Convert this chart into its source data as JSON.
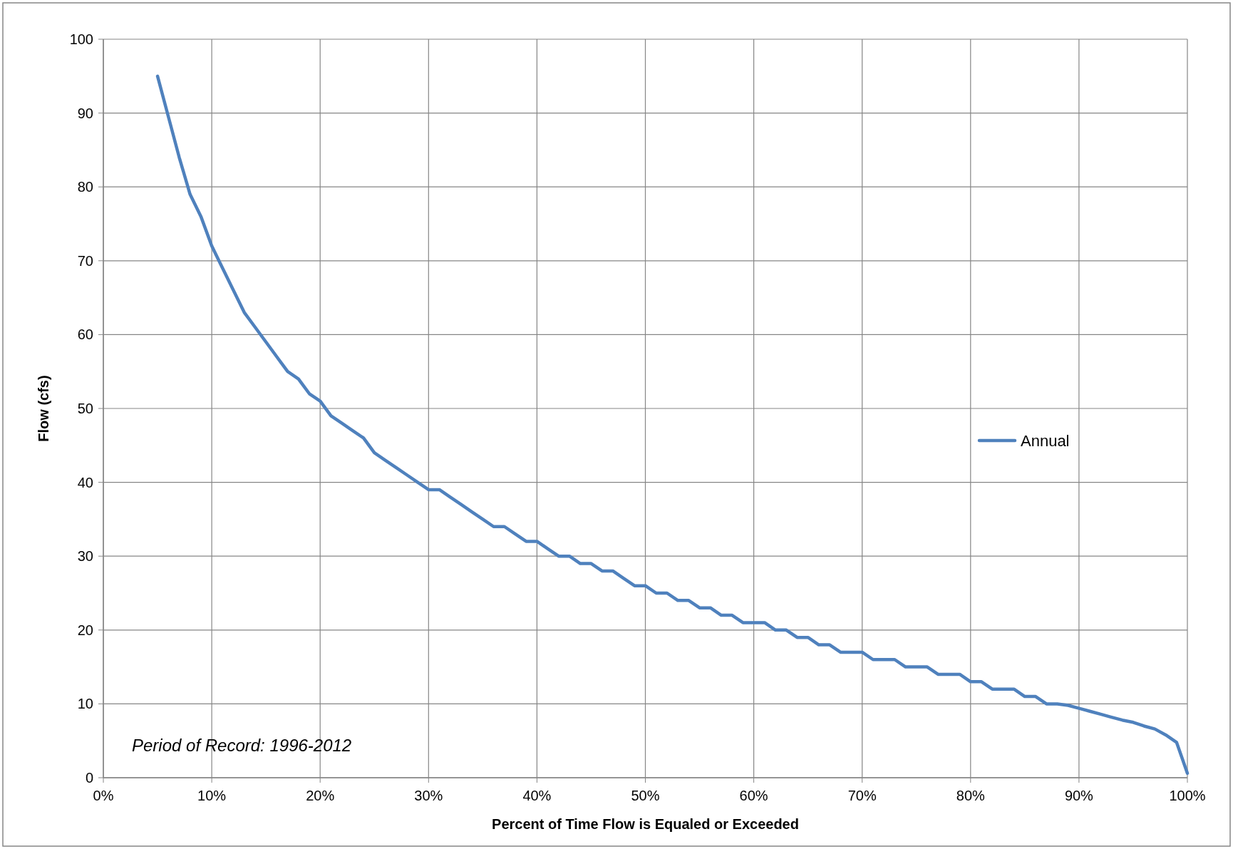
{
  "chart_data": {
    "type": "line",
    "xlabel": "Percent of Time Flow is Equaled or Exceeded",
    "ylabel": "Flow (cfs)",
    "annotations": [
      "Period of Record:  1996-2012"
    ],
    "x": [
      5,
      6,
      7,
      8,
      9,
      10,
      11,
      12,
      13,
      14,
      15,
      16,
      17,
      18,
      19,
      20,
      21,
      22,
      23,
      24,
      25,
      26,
      27,
      28,
      29,
      30,
      31,
      32,
      33,
      34,
      35,
      36,
      37,
      38,
      39,
      40,
      41,
      42,
      43,
      44,
      45,
      46,
      47,
      48,
      49,
      50,
      51,
      52,
      53,
      54,
      55,
      56,
      57,
      58,
      59,
      60,
      61,
      62,
      63,
      64,
      65,
      66,
      67,
      68,
      69,
      70,
      71,
      72,
      73,
      74,
      75,
      76,
      77,
      78,
      79,
      80,
      81,
      82,
      83,
      84,
      85,
      86,
      87,
      88,
      89,
      90,
      91,
      92,
      93,
      94,
      95,
      96,
      97,
      98,
      99,
      100
    ],
    "series": [
      {
        "name": "Annual",
        "color": "#4f81bd",
        "values": [
          95,
          89.5,
          84,
          79,
          76,
          72,
          69,
          66,
          63,
          61,
          59,
          57,
          55,
          54,
          52,
          51,
          49,
          48,
          47,
          46,
          44,
          43,
          42,
          41,
          40,
          39,
          39,
          38,
          37,
          36,
          35,
          34,
          34,
          33,
          32,
          32,
          31,
          30,
          30,
          29,
          29,
          28,
          28,
          27,
          26,
          26,
          25,
          25,
          24,
          24,
          23,
          23,
          22,
          22,
          21,
          21,
          21,
          20,
          20,
          19,
          19,
          18,
          18,
          17,
          17,
          17,
          16,
          16,
          16,
          15,
          15,
          15,
          14,
          14,
          14,
          13,
          13,
          12,
          12,
          12,
          11,
          11,
          10,
          10,
          9.8,
          9.4,
          9,
          8.6,
          8.2,
          7.8,
          7.5,
          7,
          6.6,
          5.8,
          4.8,
          0.6
        ]
      }
    ],
    "xlim": [
      0,
      100
    ],
    "xticks": [
      {
        "value": 0,
        "label": "0%"
      },
      {
        "value": 10,
        "label": "10%"
      },
      {
        "value": 20,
        "label": "20%"
      },
      {
        "value": 30,
        "label": "30%"
      },
      {
        "value": 40,
        "label": "40%"
      },
      {
        "value": 50,
        "label": "50%"
      },
      {
        "value": 60,
        "label": "60%"
      },
      {
        "value": 70,
        "label": "70%"
      },
      {
        "value": 80,
        "label": "80%"
      },
      {
        "value": 90,
        "label": "90%"
      },
      {
        "value": 100,
        "label": "100%"
      }
    ],
    "ylim": [
      0,
      100
    ],
    "yticks": [
      0,
      10,
      20,
      30,
      40,
      50,
      60,
      70,
      80,
      90,
      100
    ],
    "grid": true,
    "legend": "right",
    "marker": "none",
    "line_style": "solid"
  }
}
